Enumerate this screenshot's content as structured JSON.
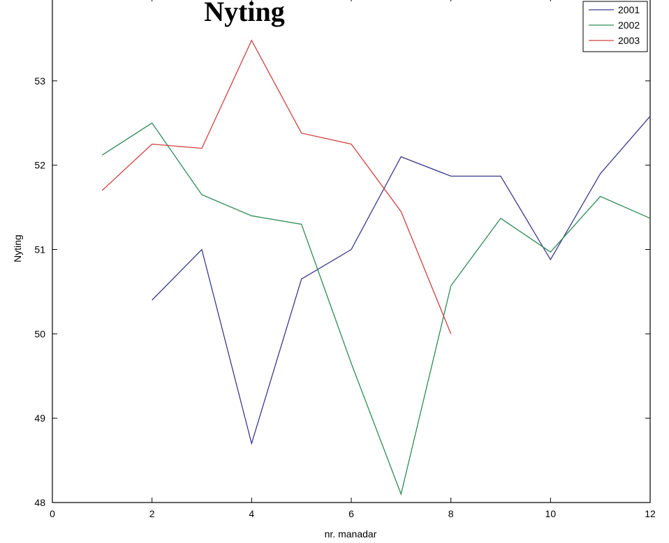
{
  "chart_data": {
    "type": "line",
    "title": "Nyting",
    "xlabel": "nr. manadar",
    "ylabel": "Nyting",
    "xlim": [
      0,
      12
    ],
    "ylim": [
      48,
      54
    ],
    "x_ticks": [
      0,
      2,
      4,
      6,
      8,
      10,
      12
    ],
    "y_ticks": [
      48,
      49,
      50,
      51,
      52,
      53
    ],
    "grid": false,
    "legend_position": "top-right",
    "series": [
      {
        "name": "2001",
        "color": "#3a3a8c",
        "x": [
          2,
          3,
          4,
          5,
          6,
          7,
          8,
          9,
          10,
          11,
          12
        ],
        "y": [
          50.4,
          51.0,
          48.7,
          50.65,
          51.0,
          52.1,
          51.87,
          51.87,
          50.88,
          51.9,
          52.58
        ]
      },
      {
        "name": "2002",
        "color": "#2e8b57",
        "x": [
          1,
          2,
          3,
          4,
          5,
          6,
          7,
          8,
          9,
          10,
          11,
          12
        ],
        "y": [
          52.12,
          52.5,
          51.65,
          51.4,
          51.3,
          49.65,
          48.1,
          50.57,
          51.37,
          50.97,
          51.63,
          51.37
        ]
      },
      {
        "name": "2003",
        "color": "#d04040",
        "x": [
          1,
          2,
          3,
          4,
          5,
          6,
          7,
          8
        ],
        "y": [
          51.7,
          52.25,
          52.2,
          53.48,
          52.38,
          52.25,
          51.45,
          50.0
        ]
      }
    ]
  }
}
